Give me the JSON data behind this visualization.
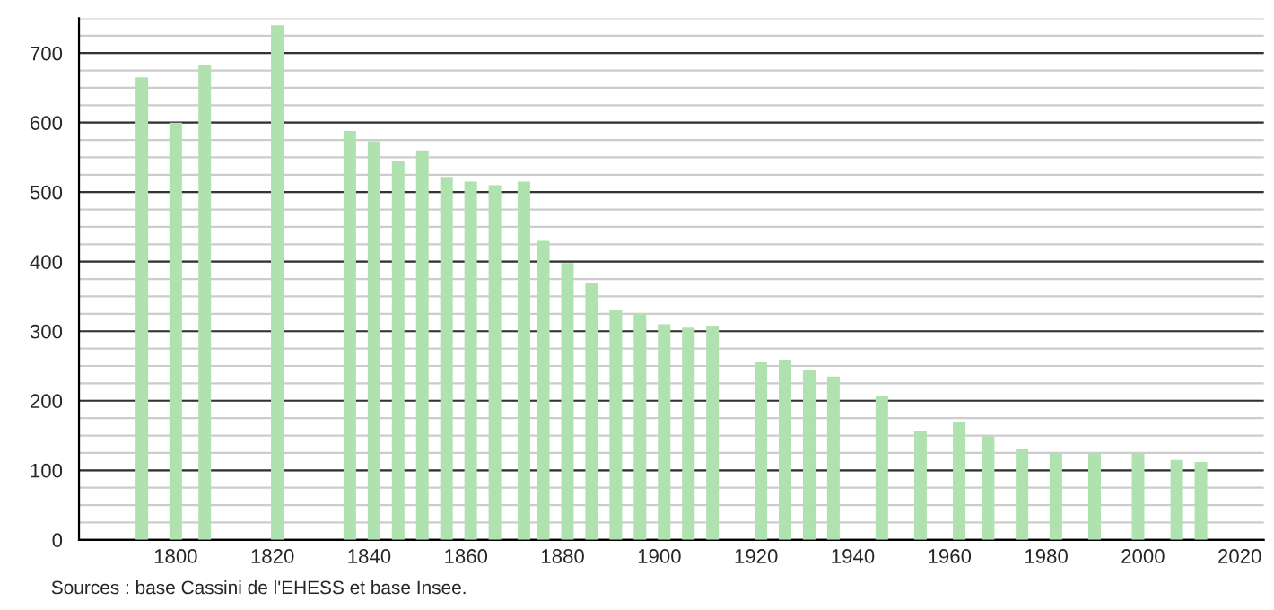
{
  "chart_data": {
    "type": "bar",
    "x": [
      1793,
      1800,
      1806,
      1821,
      1836,
      1841,
      1846,
      1851,
      1856,
      1861,
      1866,
      1872,
      1876,
      1881,
      1886,
      1891,
      1896,
      1901,
      1906,
      1911,
      1921,
      1926,
      1931,
      1936,
      1946,
      1954,
      1962,
      1968,
      1975,
      1982,
      1990,
      1999,
      2007,
      2012
    ],
    "values": [
      665,
      600,
      683,
      740,
      588,
      573,
      545,
      560,
      522,
      515,
      510,
      515,
      430,
      398,
      370,
      330,
      326,
      310,
      305,
      308,
      256,
      259,
      245,
      235,
      206,
      157,
      170,
      149,
      131,
      125,
      125,
      125,
      115,
      112
    ],
    "color": "#b0e2b0",
    "xlim": [
      1780,
      2025
    ],
    "xticks": [
      1800,
      1820,
      1840,
      1860,
      1880,
      1900,
      1920,
      1940,
      1960,
      1980,
      2000,
      2020
    ],
    "ylim": [
      0,
      750
    ],
    "yticks": [
      0,
      100,
      200,
      300,
      400,
      500,
      600,
      700
    ],
    "grid": "y",
    "annotations": [
      "Sources : base Cassini de l'EHESS et base Insee."
    ]
  }
}
